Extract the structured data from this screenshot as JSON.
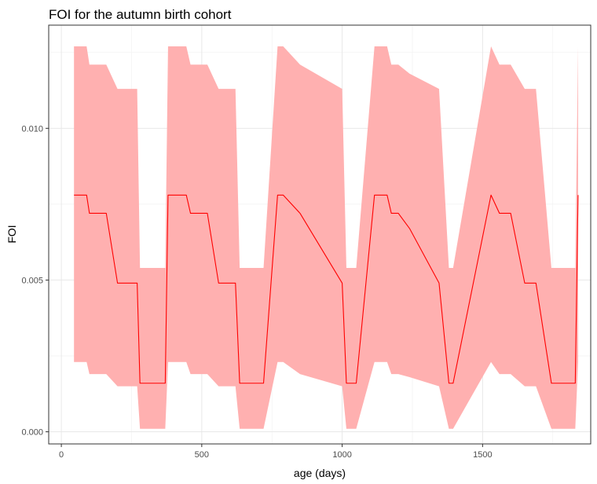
{
  "chart_data": {
    "type": "area",
    "title": "FOI for the autumn birth cohort",
    "xlabel": "age (days)",
    "ylabel": "FOI",
    "xlim": [
      -45,
      1885
    ],
    "ylim": [
      -0.0004,
      0.0134
    ],
    "x_ticks": [
      0,
      500,
      1000,
      1500
    ],
    "x_tick_labels": [
      "0",
      "500",
      "1000",
      "1500"
    ],
    "y_ticks": [
      0.0,
      0.005,
      0.01
    ],
    "y_tick_labels": [
      "0.000",
      "0.005",
      "0.010"
    ],
    "grid": true,
    "legend": "none",
    "colors": {
      "line": "#ff0000",
      "ribbon": "#ffb0b0",
      "panel_border": "#333333"
    },
    "series": [
      {
        "x": [
          45,
          90,
          100,
          160,
          200,
          270,
          280,
          370,
          380,
          445,
          460,
          520,
          560,
          620,
          635,
          720,
          770,
          790,
          850,
          1000,
          1015,
          1050,
          1115,
          1160,
          1175,
          1200,
          1240,
          1345,
          1380,
          1395,
          1530,
          1560,
          1600,
          1650,
          1690,
          1745,
          1760,
          1830,
          1840
        ],
        "y": [
          0.0078,
          0.0078,
          0.0072,
          0.0072,
          0.0049,
          0.0049,
          0.0016,
          0.0016,
          0.0078,
          0.0078,
          0.0072,
          0.0072,
          0.0049,
          0.0049,
          0.0016,
          0.0016,
          0.0078,
          0.0078,
          0.0072,
          0.0049,
          0.0016,
          0.0016,
          0.0078,
          0.0078,
          0.0072,
          0.0072,
          0.0067,
          0.0049,
          0.0016,
          0.0016,
          0.0078,
          0.0072,
          0.0072,
          0.0049,
          0.0049,
          0.0016,
          0.0016,
          0.0016,
          0.0078
        ],
        "lower": [
          0.0023,
          0.0023,
          0.0019,
          0.0019,
          0.0015,
          0.0015,
          0.0001,
          0.0001,
          0.0023,
          0.0023,
          0.0019,
          0.0019,
          0.0015,
          0.0015,
          0.0001,
          0.0001,
          0.0023,
          0.0023,
          0.0019,
          0.0015,
          0.0001,
          0.0001,
          0.0023,
          0.0023,
          0.0019,
          0.0019,
          0.0018,
          0.0015,
          0.0001,
          0.0001,
          0.0023,
          0.0019,
          0.0019,
          0.0015,
          0.0015,
          0.0001,
          0.0001,
          0.0001,
          0.0023
        ],
        "upper": [
          0.0127,
          0.0127,
          0.0121,
          0.0121,
          0.0113,
          0.0113,
          0.0054,
          0.0054,
          0.0127,
          0.0127,
          0.0121,
          0.0121,
          0.0113,
          0.0113,
          0.0054,
          0.0054,
          0.0127,
          0.0127,
          0.0121,
          0.0113,
          0.0054,
          0.0054,
          0.0127,
          0.0127,
          0.0121,
          0.0121,
          0.0118,
          0.0113,
          0.0054,
          0.0054,
          0.0127,
          0.0121,
          0.0121,
          0.0113,
          0.0113,
          0.0054,
          0.0054,
          0.0054,
          0.0127
        ]
      }
    ]
  }
}
